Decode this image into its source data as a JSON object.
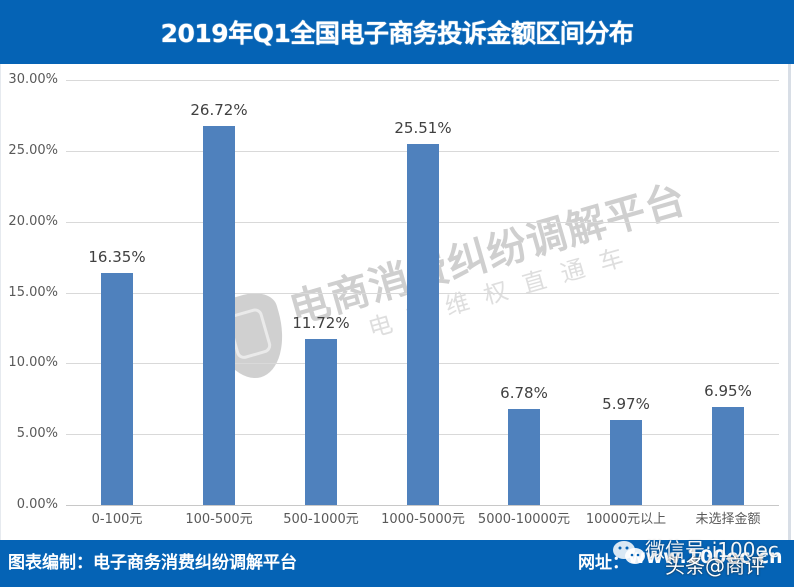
{
  "header": {
    "title": "2019年Q1全国电子商务投诉金额区间分布"
  },
  "footer": {
    "credit": "图表编制：电子商务消费纠纷调解平台",
    "url_label": "网址：",
    "url": "www.100ec.cn"
  },
  "overlay": {
    "wechat_label": "微信号:i100ec",
    "toutiao_label": "头条@商评"
  },
  "watermark": {
    "main": "电商消费纠纷调解平台",
    "sub": "电商维权直通车",
    "icon": "shield-fist-icon"
  },
  "colors": {
    "header_bg": "#0563b5",
    "bar": "#4f81bd",
    "gridline": "#d9d9d9"
  },
  "chart_data": {
    "type": "bar",
    "title": "2019年Q1全国电子商务投诉金额区间分布",
    "xlabel": "",
    "ylabel": "",
    "categories": [
      "0-100元",
      "100-500元",
      "500-1000元",
      "1000-5000元",
      "5000-10000元",
      "10000元以上",
      "未选择金额"
    ],
    "values": [
      16.35,
      26.72,
      11.72,
      25.51,
      6.78,
      5.97,
      6.95
    ],
    "value_labels": [
      "16.35%",
      "26.72%",
      "11.72%",
      "25.51%",
      "6.78%",
      "5.97%",
      "6.95%"
    ],
    "ylim": [
      0,
      30
    ],
    "yticks": [
      "0.00%",
      "5.00%",
      "10.00%",
      "15.00%",
      "20.00%",
      "25.00%",
      "30.00%"
    ],
    "grid": true,
    "legend": null,
    "unit": "%"
  }
}
